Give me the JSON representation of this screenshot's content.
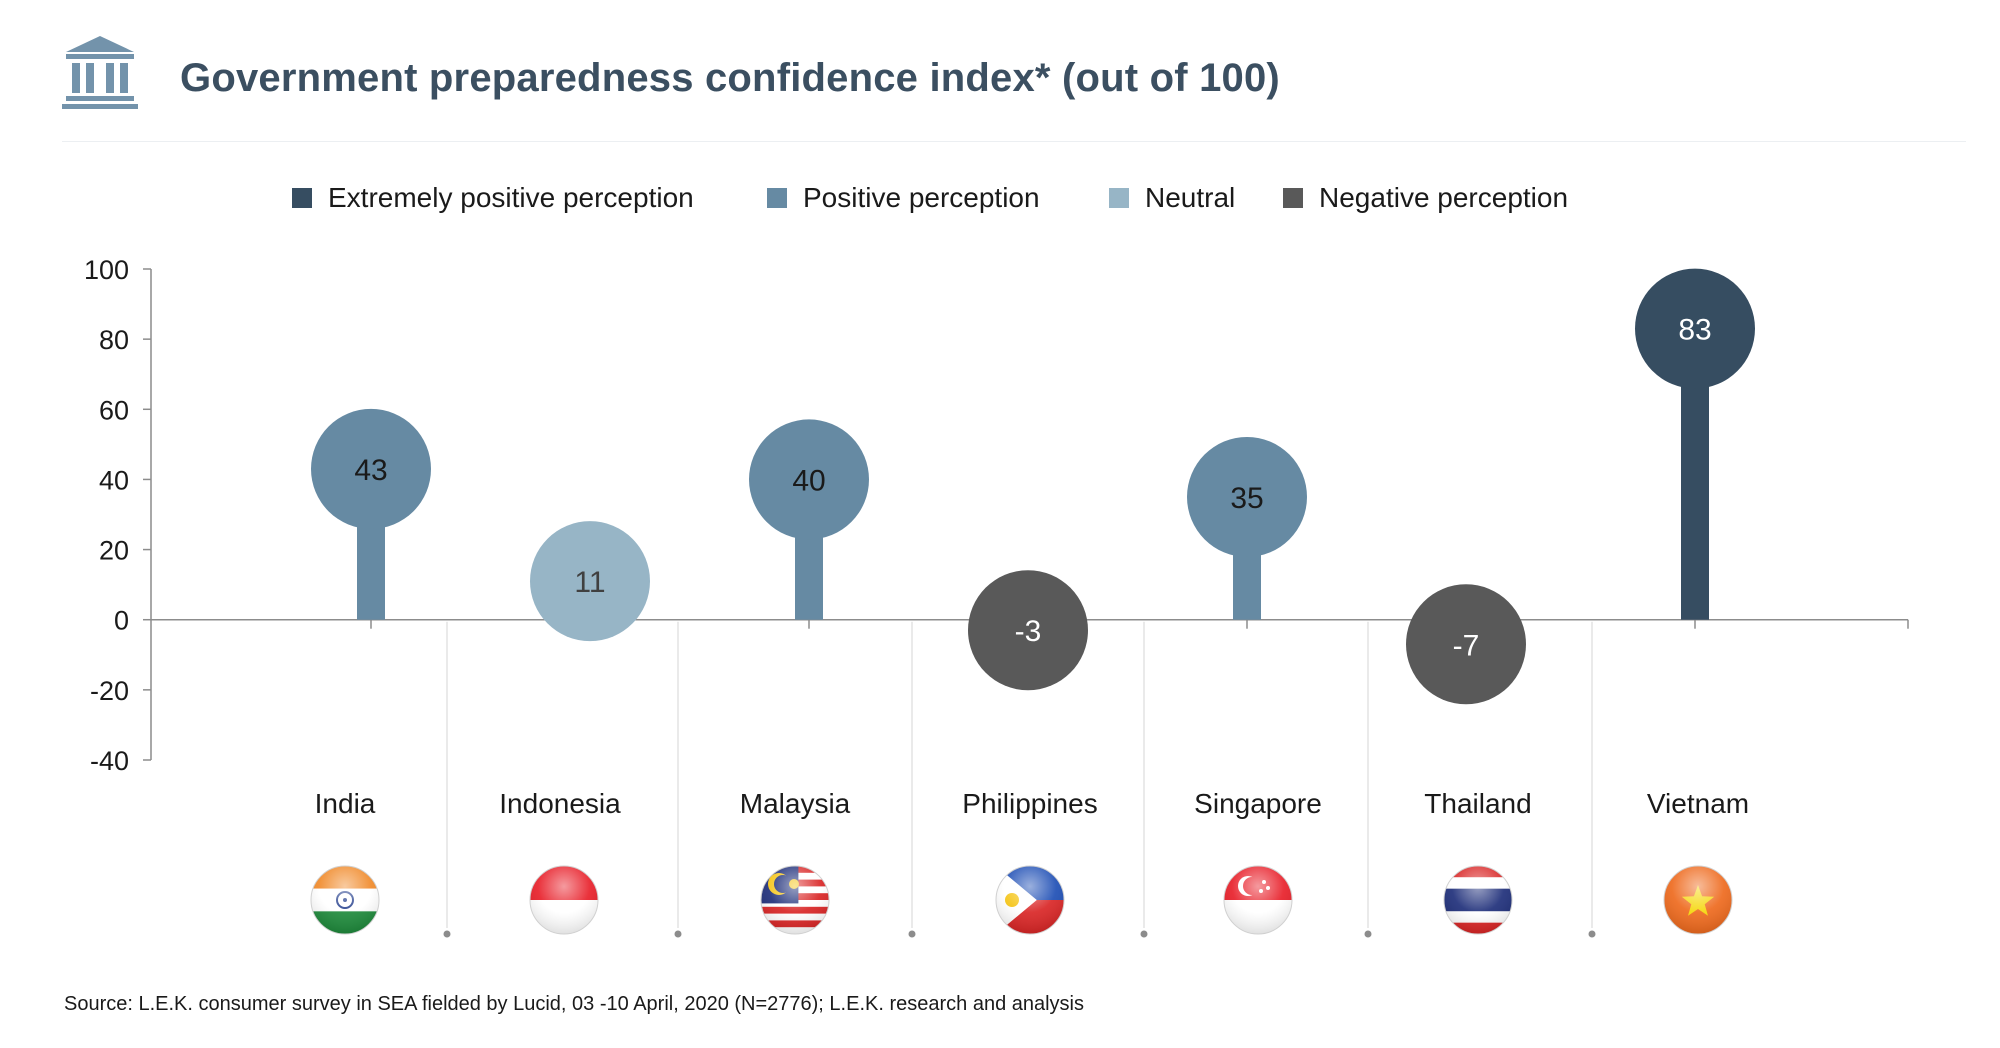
{
  "header": {
    "icon": "government-building-icon",
    "title": "Government preparedness confidence index* (out of 100)"
  },
  "legend": {
    "items": [
      {
        "label": "Extremely positive perception",
        "color": "#364d61"
      },
      {
        "label": "Positive perception",
        "color": "#668aa3"
      },
      {
        "label": "Neutral",
        "color": "#97b5c6"
      },
      {
        "label": "Negative perception",
        "color": "#595959"
      }
    ]
  },
  "chart_data": {
    "type": "bar",
    "title": "Government preparedness confidence index* (out of 100)",
    "xlabel": "",
    "ylabel": "",
    "ylim": [
      -40,
      100
    ],
    "yticks": [
      100,
      80,
      60,
      40,
      20,
      0,
      -20,
      -40
    ],
    "grid": false,
    "legend_position": "top",
    "categories": [
      "India",
      "Indonesia",
      "Malaysia",
      "Philippines",
      "Singapore",
      "Thailand",
      "Vietnam"
    ],
    "values": [
      43,
      11,
      40,
      -3,
      35,
      -7,
      83
    ],
    "data_labels": [
      "43",
      "11",
      "40",
      "-3",
      "35",
      "-7",
      "83"
    ],
    "perception": [
      "Positive perception",
      "Neutral",
      "Positive perception",
      "Negative perception",
      "Positive perception",
      "Negative perception",
      "Extremely positive perception"
    ],
    "colors": [
      "#668aa3",
      "#97b5c6",
      "#668aa3",
      "#595959",
      "#668aa3",
      "#595959",
      "#364d61"
    ],
    "flags": [
      "india-flag-icon",
      "indonesia-flag-icon",
      "malaysia-flag-icon",
      "philippines-flag-icon",
      "singapore-flag-icon",
      "thailand-flag-icon",
      "vietnam-flag-icon"
    ],
    "label_color_dark": "#1a1a1a",
    "label_color_light": "#ffffff",
    "label_color_neutral": "#404040"
  },
  "footer": {
    "source": "Source: L.E.K. consumer survey in SEA fielded by Lucid, 03 -10 April, 2020 (N=2776); L.E.K. research and analysis"
  }
}
